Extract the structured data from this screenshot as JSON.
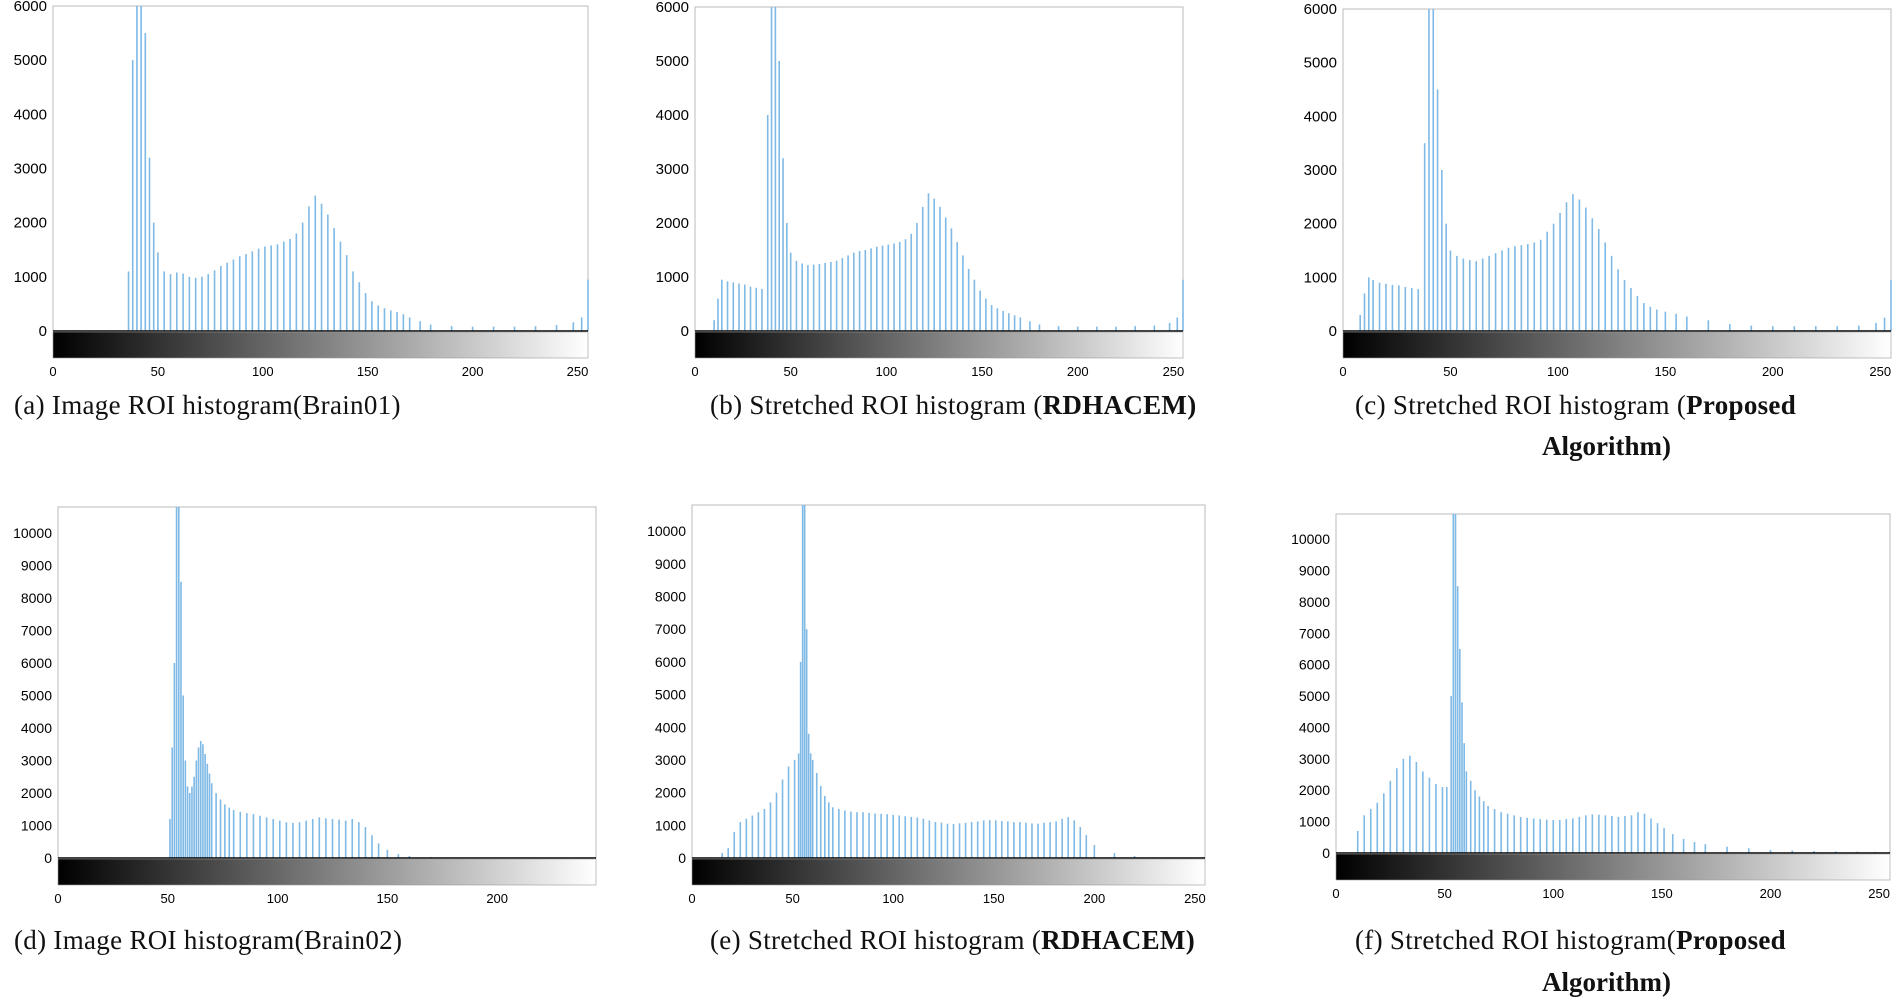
{
  "colors": {
    "bar": "#7fb9e6",
    "frame": "#bbbbbb",
    "axis": "#000000"
  },
  "chart_data": [
    {
      "type": "bar",
      "caption_prefix": "(a)  Image ROI histogram(Brain01)",
      "caption_bold": "",
      "caption_suffix": "",
      "caption_line2": "",
      "xlim": [
        0,
        255
      ],
      "ylim": [
        0,
        6000
      ],
      "x_ticks": [
        0,
        50,
        100,
        150,
        200,
        250
      ],
      "y_ticks": [
        0,
        1000,
        2000,
        3000,
        4000,
        5000,
        6000
      ],
      "colorbar": "grayscale 0-255",
      "bins": [
        36,
        38,
        40,
        42,
        44,
        46,
        48,
        50,
        53,
        56,
        59,
        62,
        65,
        68,
        71,
        74,
        77,
        80,
        83,
        86,
        89,
        92,
        95,
        98,
        101,
        104,
        107,
        110,
        113,
        116,
        119,
        122,
        125,
        128,
        131,
        134,
        137,
        140,
        143,
        146,
        149,
        152,
        155,
        158,
        161,
        164,
        167,
        170,
        175,
        180,
        190,
        200,
        210,
        220,
        230,
        240,
        248,
        252,
        255
      ],
      "values": [
        1100,
        5000,
        6200,
        6200,
        5500,
        3200,
        2000,
        1450,
        1100,
        1050,
        1080,
        1060,
        1000,
        980,
        1000,
        1050,
        1120,
        1200,
        1260,
        1320,
        1380,
        1420,
        1470,
        1520,
        1560,
        1580,
        1600,
        1650,
        1700,
        1800,
        2000,
        2300,
        2500,
        2350,
        2150,
        1900,
        1650,
        1400,
        1100,
        900,
        700,
        550,
        470,
        420,
        380,
        350,
        310,
        250,
        180,
        120,
        90,
        80,
        80,
        80,
        90,
        110,
        160,
        250,
        950
      ]
    },
    {
      "type": "bar",
      "caption_prefix": "(b)  Stretched ROI histogram (",
      "caption_bold": "RDHACEM)",
      "caption_suffix": "",
      "caption_line2": "",
      "xlim": [
        0,
        255
      ],
      "ylim": [
        0,
        6000
      ],
      "x_ticks": [
        0,
        50,
        100,
        150,
        200,
        250
      ],
      "y_ticks": [
        0,
        1000,
        2000,
        3000,
        4000,
        5000,
        6000
      ],
      "colorbar": "grayscale 0-255",
      "bins": [
        10,
        12,
        14,
        17,
        20,
        23,
        26,
        29,
        32,
        35,
        38,
        40,
        42,
        44,
        46,
        48,
        50,
        53,
        56,
        59,
        62,
        65,
        68,
        71,
        74,
        77,
        80,
        83,
        86,
        89,
        92,
        95,
        98,
        101,
        104,
        107,
        110,
        113,
        116,
        119,
        122,
        125,
        128,
        131,
        134,
        137,
        140,
        143,
        146,
        149,
        152,
        155,
        158,
        161,
        164,
        167,
        170,
        175,
        180,
        190,
        200,
        210,
        220,
        230,
        240,
        248,
        252,
        255
      ],
      "values": [
        200,
        600,
        950,
        920,
        900,
        880,
        860,
        820,
        800,
        780,
        4000,
        6200,
        6000,
        5000,
        3200,
        2000,
        1450,
        1300,
        1250,
        1220,
        1230,
        1240,
        1260,
        1280,
        1300,
        1350,
        1400,
        1450,
        1480,
        1500,
        1530,
        1560,
        1580,
        1600,
        1620,
        1650,
        1700,
        1800,
        2000,
        2300,
        2550,
        2450,
        2300,
        2100,
        1900,
        1650,
        1400,
        1150,
        950,
        750,
        600,
        480,
        420,
        370,
        330,
        290,
        250,
        180,
        120,
        90,
        80,
        80,
        80,
        90,
        100,
        150,
        250,
        950
      ]
    },
    {
      "type": "bar",
      "caption_prefix": "(c)  Stretched ROI histogram (",
      "caption_bold": "Proposed",
      "caption_suffix": "",
      "caption_line2": "Algorithm)",
      "xlim": [
        0,
        255
      ],
      "ylim": [
        0,
        6000
      ],
      "x_ticks": [
        0,
        50,
        100,
        150,
        200,
        250
      ],
      "y_ticks": [
        0,
        1000,
        2000,
        3000,
        4000,
        5000,
        6000
      ],
      "colorbar": "grayscale 0-255",
      "bins": [
        8,
        10,
        12,
        14,
        17,
        20,
        23,
        26,
        29,
        32,
        35,
        38,
        40,
        42,
        44,
        46,
        48,
        50,
        53,
        56,
        59,
        62,
        65,
        68,
        71,
        74,
        77,
        80,
        83,
        86,
        89,
        92,
        95,
        98,
        101,
        104,
        107,
        110,
        113,
        116,
        119,
        122,
        125,
        128,
        131,
        134,
        137,
        140,
        143,
        146,
        150,
        155,
        160,
        170,
        180,
        190,
        200,
        210,
        220,
        230,
        240,
        248,
        252,
        255
      ],
      "values": [
        300,
        700,
        1000,
        950,
        900,
        880,
        860,
        850,
        820,
        800,
        780,
        3500,
        6200,
        6000,
        4500,
        3000,
        2000,
        1500,
        1400,
        1350,
        1320,
        1300,
        1350,
        1400,
        1450,
        1500,
        1550,
        1580,
        1600,
        1620,
        1650,
        1700,
        1850,
        2000,
        2200,
        2400,
        2550,
        2450,
        2300,
        2100,
        1900,
        1650,
        1400,
        1150,
        950,
        800,
        650,
        520,
        450,
        400,
        360,
        320,
        270,
        200,
        130,
        100,
        90,
        90,
        90,
        90,
        100,
        150,
        250,
        950
      ]
    },
    {
      "type": "bar",
      "caption_prefix": "(d)  Image ROI histogram(Brain02)",
      "caption_bold": "",
      "caption_suffix": "",
      "caption_line2": "",
      "xlim": [
        0,
        245
      ],
      "ylim": [
        0,
        10800
      ],
      "x_ticks": [
        0,
        50,
        100,
        150,
        200
      ],
      "y_ticks": [
        0,
        1000,
        2000,
        3000,
        4000,
        5000,
        6000,
        7000,
        8000,
        9000,
        10000
      ],
      "colorbar": "grayscale 0-245",
      "bins": [
        51,
        52,
        53,
        54,
        55,
        56,
        57,
        58,
        59,
        60,
        61,
        62,
        63,
        64,
        65,
        66,
        67,
        68,
        69,
        70,
        72,
        74,
        76,
        78,
        80,
        83,
        86,
        89,
        92,
        95,
        98,
        101,
        104,
        107,
        110,
        113,
        116,
        119,
        122,
        125,
        128,
        131,
        134,
        137,
        140,
        143,
        146,
        150,
        155,
        160,
        170,
        180,
        190
      ],
      "values": [
        1200,
        3400,
        6000,
        10800,
        10800,
        8500,
        5000,
        3000,
        2200,
        2000,
        2200,
        2500,
        3000,
        3400,
        3600,
        3500,
        3200,
        2900,
        2600,
        2300,
        2000,
        1800,
        1650,
        1550,
        1480,
        1420,
        1380,
        1350,
        1300,
        1250,
        1200,
        1150,
        1100,
        1080,
        1100,
        1150,
        1200,
        1250,
        1220,
        1200,
        1180,
        1150,
        1200,
        1100,
        950,
        700,
        450,
        250,
        120,
        60,
        30,
        15,
        5
      ]
    },
    {
      "type": "bar",
      "caption_prefix": "(e)  Stretched ROI histogram (",
      "caption_bold": "RDHACEM)",
      "caption_suffix": "",
      "caption_line2": "",
      "xlim": [
        0,
        255
      ],
      "ylim": [
        0,
        10800
      ],
      "x_ticks": [
        0,
        50,
        100,
        150,
        200,
        250
      ],
      "y_ticks": [
        0,
        1000,
        2000,
        3000,
        4000,
        5000,
        6000,
        7000,
        8000,
        9000,
        10000
      ],
      "colorbar": "grayscale 0-255",
      "bins": [
        15,
        18,
        21,
        24,
        27,
        30,
        33,
        36,
        39,
        42,
        45,
        48,
        51,
        53,
        54,
        55,
        56,
        57,
        58,
        59,
        60,
        62,
        64,
        66,
        68,
        70,
        73,
        76,
        79,
        82,
        85,
        88,
        91,
        94,
        97,
        100,
        103,
        106,
        109,
        112,
        115,
        118,
        121,
        124,
        127,
        130,
        133,
        136,
        139,
        142,
        145,
        148,
        151,
        154,
        157,
        160,
        163,
        166,
        169,
        172,
        175,
        178,
        181,
        184,
        187,
        190,
        193,
        196,
        200,
        210,
        220,
        230,
        240,
        250
      ],
      "values": [
        150,
        300,
        800,
        1100,
        1200,
        1300,
        1400,
        1500,
        1700,
        2000,
        2400,
        2800,
        3000,
        3200,
        6000,
        10800,
        10800,
        7000,
        3800,
        3200,
        3000,
        2600,
        2200,
        1900,
        1700,
        1550,
        1500,
        1450,
        1420,
        1400,
        1400,
        1380,
        1360,
        1350,
        1340,
        1320,
        1300,
        1280,
        1260,
        1240,
        1200,
        1150,
        1100,
        1080,
        1050,
        1040,
        1060,
        1080,
        1100,
        1120,
        1150,
        1160,
        1150,
        1130,
        1120,
        1100,
        1100,
        1080,
        1060,
        1050,
        1080,
        1100,
        1120,
        1200,
        1250,
        1150,
        950,
        700,
        400,
        150,
        60,
        20,
        10,
        5
      ]
    },
    {
      "type": "bar",
      "caption_prefix": "(f)  Stretched ROI histogram(",
      "caption_bold": "Proposed",
      "caption_suffix": "",
      "caption_line2": "Algorithm)",
      "xlim": [
        0,
        255
      ],
      "ylim": [
        0,
        10800
      ],
      "x_ticks": [
        0,
        50,
        100,
        150,
        200,
        250
      ],
      "y_ticks": [
        0,
        1000,
        2000,
        3000,
        4000,
        5000,
        6000,
        7000,
        8000,
        9000,
        10000
      ],
      "colorbar": "grayscale 0-255",
      "bins": [
        10,
        13,
        16,
        19,
        22,
        25,
        28,
        31,
        34,
        37,
        40,
        43,
        46,
        49,
        51,
        53,
        54,
        55,
        56,
        57,
        58,
        59,
        60,
        62,
        64,
        66,
        68,
        70,
        73,
        76,
        79,
        82,
        85,
        88,
        91,
        94,
        97,
        100,
        103,
        106,
        109,
        112,
        115,
        118,
        121,
        124,
        127,
        130,
        133,
        136,
        139,
        142,
        145,
        148,
        151,
        155,
        160,
        165,
        170,
        180,
        190,
        200,
        210,
        220,
        230,
        240,
        248,
        255
      ],
      "values": [
        700,
        1200,
        1400,
        1600,
        1900,
        2300,
        2700,
        3000,
        3100,
        2900,
        2600,
        2400,
        2200,
        2100,
        2100,
        5000,
        10800,
        10800,
        8500,
        6500,
        4800,
        3500,
        2600,
        2300,
        2000,
        1800,
        1650,
        1500,
        1400,
        1300,
        1250,
        1200,
        1150,
        1120,
        1100,
        1080,
        1060,
        1050,
        1050,
        1080,
        1100,
        1150,
        1200,
        1230,
        1220,
        1200,
        1180,
        1150,
        1180,
        1200,
        1300,
        1250,
        1100,
        950,
        800,
        600,
        450,
        350,
        280,
        200,
        150,
        100,
        80,
        60,
        50,
        40,
        30,
        20
      ]
    }
  ]
}
